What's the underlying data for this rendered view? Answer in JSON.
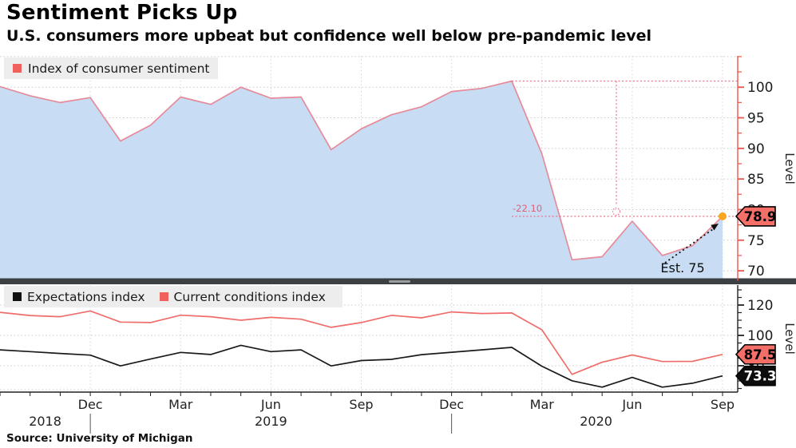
{
  "header": {
    "title": "Sentiment Picks Up",
    "subtitle": "U.S. consumers more upbeat but confidence well below pre-pandemic level"
  },
  "source": "Source: University of Michigan",
  "colors": {
    "area_fill": "#c8ddf4",
    "sentiment_line": "#e78a99",
    "conditions_line": "#ef6e6b",
    "expectations_line": "#1a1a1a",
    "axis_red": "#f0544c",
    "axis_black": "#222222",
    "grid": "#cccccc",
    "grid_vertical": "#d8d8d8",
    "annotation_red": "#e87188",
    "annotation_text_red": "#dd5f7a",
    "tag_red": "#f46f68",
    "tag_black": "#0d0d0d",
    "marker_orange": "#f9a621",
    "legend_swatch_red": "#f0615e",
    "legend_swatch_black": "#111111",
    "divider": "#3d4043",
    "divider_handle": "#9a9da0"
  },
  "x_axis": {
    "tick_labels": [
      "Dec",
      "Mar",
      "Jun",
      "Sep",
      "Dec",
      "Mar",
      "Jun",
      "Sep"
    ],
    "tick_months": [
      3,
      6,
      9,
      12,
      15,
      18,
      21,
      24
    ],
    "years": [
      {
        "label": "2018",
        "month": 1.5
      },
      {
        "label": "2019",
        "month": 9.0
      },
      {
        "label": "2020",
        "month": 19.8
      }
    ],
    "year_separator_months": [
      3,
      15
    ]
  },
  "chart_data": [
    {
      "type": "area",
      "legend": "Index of consumer sentiment",
      "ylabel": "Level",
      "ylim": [
        68,
        105
      ],
      "y_ticks": [
        70,
        75,
        80,
        85,
        90,
        95,
        100
      ],
      "grid": true,
      "x": [
        "Sep 2018",
        "Oct 2018",
        "Nov 2018",
        "Dec 2018",
        "Jan 2019",
        "Feb 2019",
        "Mar 2019",
        "Apr 2019",
        "May 2019",
        "Jun 2019",
        "Jul 2019",
        "Aug 2019",
        "Sep 2019",
        "Oct 2019",
        "Nov 2019",
        "Dec 2019",
        "Jan 2020",
        "Feb 2020",
        "Mar 2020",
        "Apr 2020",
        "May 2020",
        "Jun 2020",
        "Jul 2020",
        "Aug 2020",
        "Sep 2020"
      ],
      "values": [
        100.1,
        98.6,
        97.5,
        98.3,
        91.2,
        93.8,
        98.4,
        97.2,
        100.0,
        98.2,
        98.4,
        89.8,
        93.2,
        95.5,
        96.8,
        99.3,
        99.8,
        101.0,
        89.1,
        71.8,
        72.3,
        78.1,
        72.5,
        74.1,
        78.9
      ],
      "last_value_label": "78.9",
      "annotations": {
        "drop_label": "-22.10",
        "drop_from_value": 101.0,
        "drop_from_month": 17,
        "drop_to_value": 78.9,
        "estimate_label": "Est. 75"
      }
    },
    {
      "type": "line",
      "ylabel": "Level",
      "ylim": [
        63,
        133
      ],
      "y_ticks": [
        80,
        100,
        120
      ],
      "grid": true,
      "x": [
        "Sep 2018",
        "Oct 2018",
        "Nov 2018",
        "Dec 2018",
        "Jan 2019",
        "Feb 2019",
        "Mar 2019",
        "Apr 2019",
        "May 2019",
        "Jun 2019",
        "Jul 2019",
        "Aug 2019",
        "Sep 2019",
        "Oct 2019",
        "Nov 2019",
        "Dec 2019",
        "Jan 2020",
        "Feb 2020",
        "Mar 2020",
        "Apr 2020",
        "May 2020",
        "Jun 2020",
        "Jul 2020",
        "Aug 2020",
        "Sep 2020"
      ],
      "series": [
        {
          "name": "Expectations index",
          "values": [
            90.5,
            89.3,
            88.1,
            87.0,
            79.9,
            84.4,
            88.8,
            87.4,
            93.5,
            89.3,
            90.5,
            79.9,
            83.4,
            84.2,
            87.3,
            88.9,
            90.5,
            92.1,
            79.7,
            70.1,
            65.9,
            72.3,
            65.9,
            68.5,
            73.3
          ],
          "last_value_label": "73.3"
        },
        {
          "name": "Current conditions index",
          "values": [
            115.2,
            113.1,
            112.3,
            116.1,
            108.8,
            108.5,
            113.3,
            112.3,
            110.0,
            111.9,
            110.7,
            105.3,
            108.5,
            113.2,
            111.6,
            115.5,
            114.4,
            114.8,
            103.7,
            74.3,
            82.3,
            87.1,
            82.8,
            82.9,
            87.5
          ],
          "last_value_label": "87.5"
        }
      ]
    }
  ]
}
